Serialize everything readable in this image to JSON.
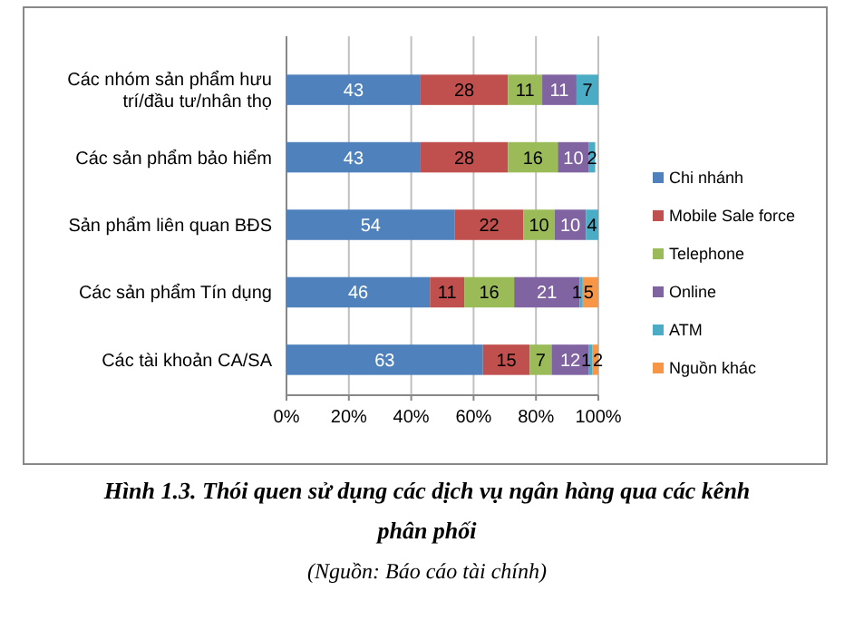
{
  "chart_data": {
    "type": "bar",
    "orientation": "horizontal",
    "stacked": true,
    "title": "Hình 1.3. Thói quen sử dụng các dịch vụ ngân hàng qua các kênh phân phối",
    "annotations": [
      "(Nguồn: Báo cáo tài chính)"
    ],
    "categories": [
      "Các nhóm sản phẩm hưu trí/đầu tư/nhân thọ",
      "Các sản phẩm  bảo hiểm",
      "Sản phẩm liên quan  BĐS",
      "Các sản phẩm  Tín dụng",
      "Các tài khoản CA/SA"
    ],
    "series": [
      {
        "name": "Chi nhánh",
        "color": "#4f81bd",
        "values": [
          43,
          43,
          54,
          46,
          63
        ],
        "value_labels": [
          "43",
          "43",
          "54",
          "46",
          "63"
        ]
      },
      {
        "name": "Mobile Sale force",
        "color": "#c0504d",
        "values": [
          28,
          28,
          22,
          11,
          15
        ],
        "value_labels": [
          "28",
          "28",
          "22",
          "11",
          "15"
        ]
      },
      {
        "name": "Telephone",
        "color": "#9bbb59",
        "values": [
          11,
          16,
          10,
          16,
          7
        ],
        "value_labels": [
          "11",
          "16",
          "10",
          "16",
          "7"
        ]
      },
      {
        "name": "Online",
        "color": "#8064a2",
        "values": [
          11,
          10,
          10,
          21,
          12
        ],
        "value_labels": [
          "11",
          "10",
          "10",
          "21",
          "12"
        ]
      },
      {
        "name": "ATM",
        "color": "#4bacc6",
        "values": [
          7,
          2,
          4,
          1,
          1
        ],
        "value_labels": [
          "7",
          "2",
          "4",
          "1",
          "1"
        ]
      },
      {
        "name": "Nguồn khác",
        "color": "#f79646",
        "values": [
          null,
          null,
          null,
          5,
          2
        ],
        "value_labels": [
          null,
          null,
          null,
          "5",
          "2"
        ]
      }
    ],
    "xlim": [
      0,
      100
    ],
    "xticks": [
      {
        "value": 0,
        "label": "0%"
      },
      {
        "value": 20,
        "label": "20%"
      },
      {
        "value": 40,
        "label": "40%"
      },
      {
        "value": 60,
        "label": "60%"
      },
      {
        "value": 80,
        "label": "80%"
      },
      {
        "value": 100,
        "label": "100%"
      }
    ],
    "grid": "x",
    "legend": "right"
  }
}
